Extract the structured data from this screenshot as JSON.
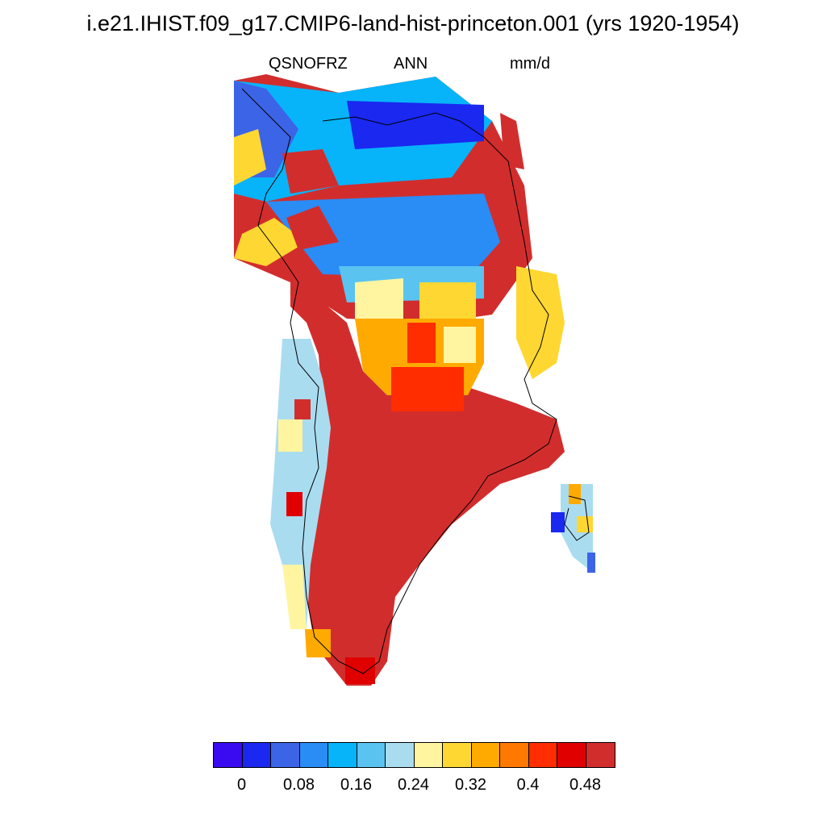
{
  "header": {
    "title": "i.e21.IHIST.f09_g17.CMIP6-land-hist-princeton.001 (yrs 1920-1954)",
    "variable": "QSNOFRZ",
    "season": "ANN",
    "units": "mm/d"
  },
  "colorbar": {
    "colors": [
      "#3a0af0",
      "#1a28f0",
      "#3c64e6",
      "#2a8cf5",
      "#07b4fa",
      "#5ac3f0",
      "#aadcf0",
      "#fff5a0",
      "#ffd732",
      "#ffaa00",
      "#ff7800",
      "#ff2d00",
      "#e00000",
      "#d22d2d"
    ],
    "tick_labels": [
      "0",
      "0.08",
      "0.16",
      "0.24",
      "0.32",
      "0.4",
      "0.48"
    ]
  }
}
